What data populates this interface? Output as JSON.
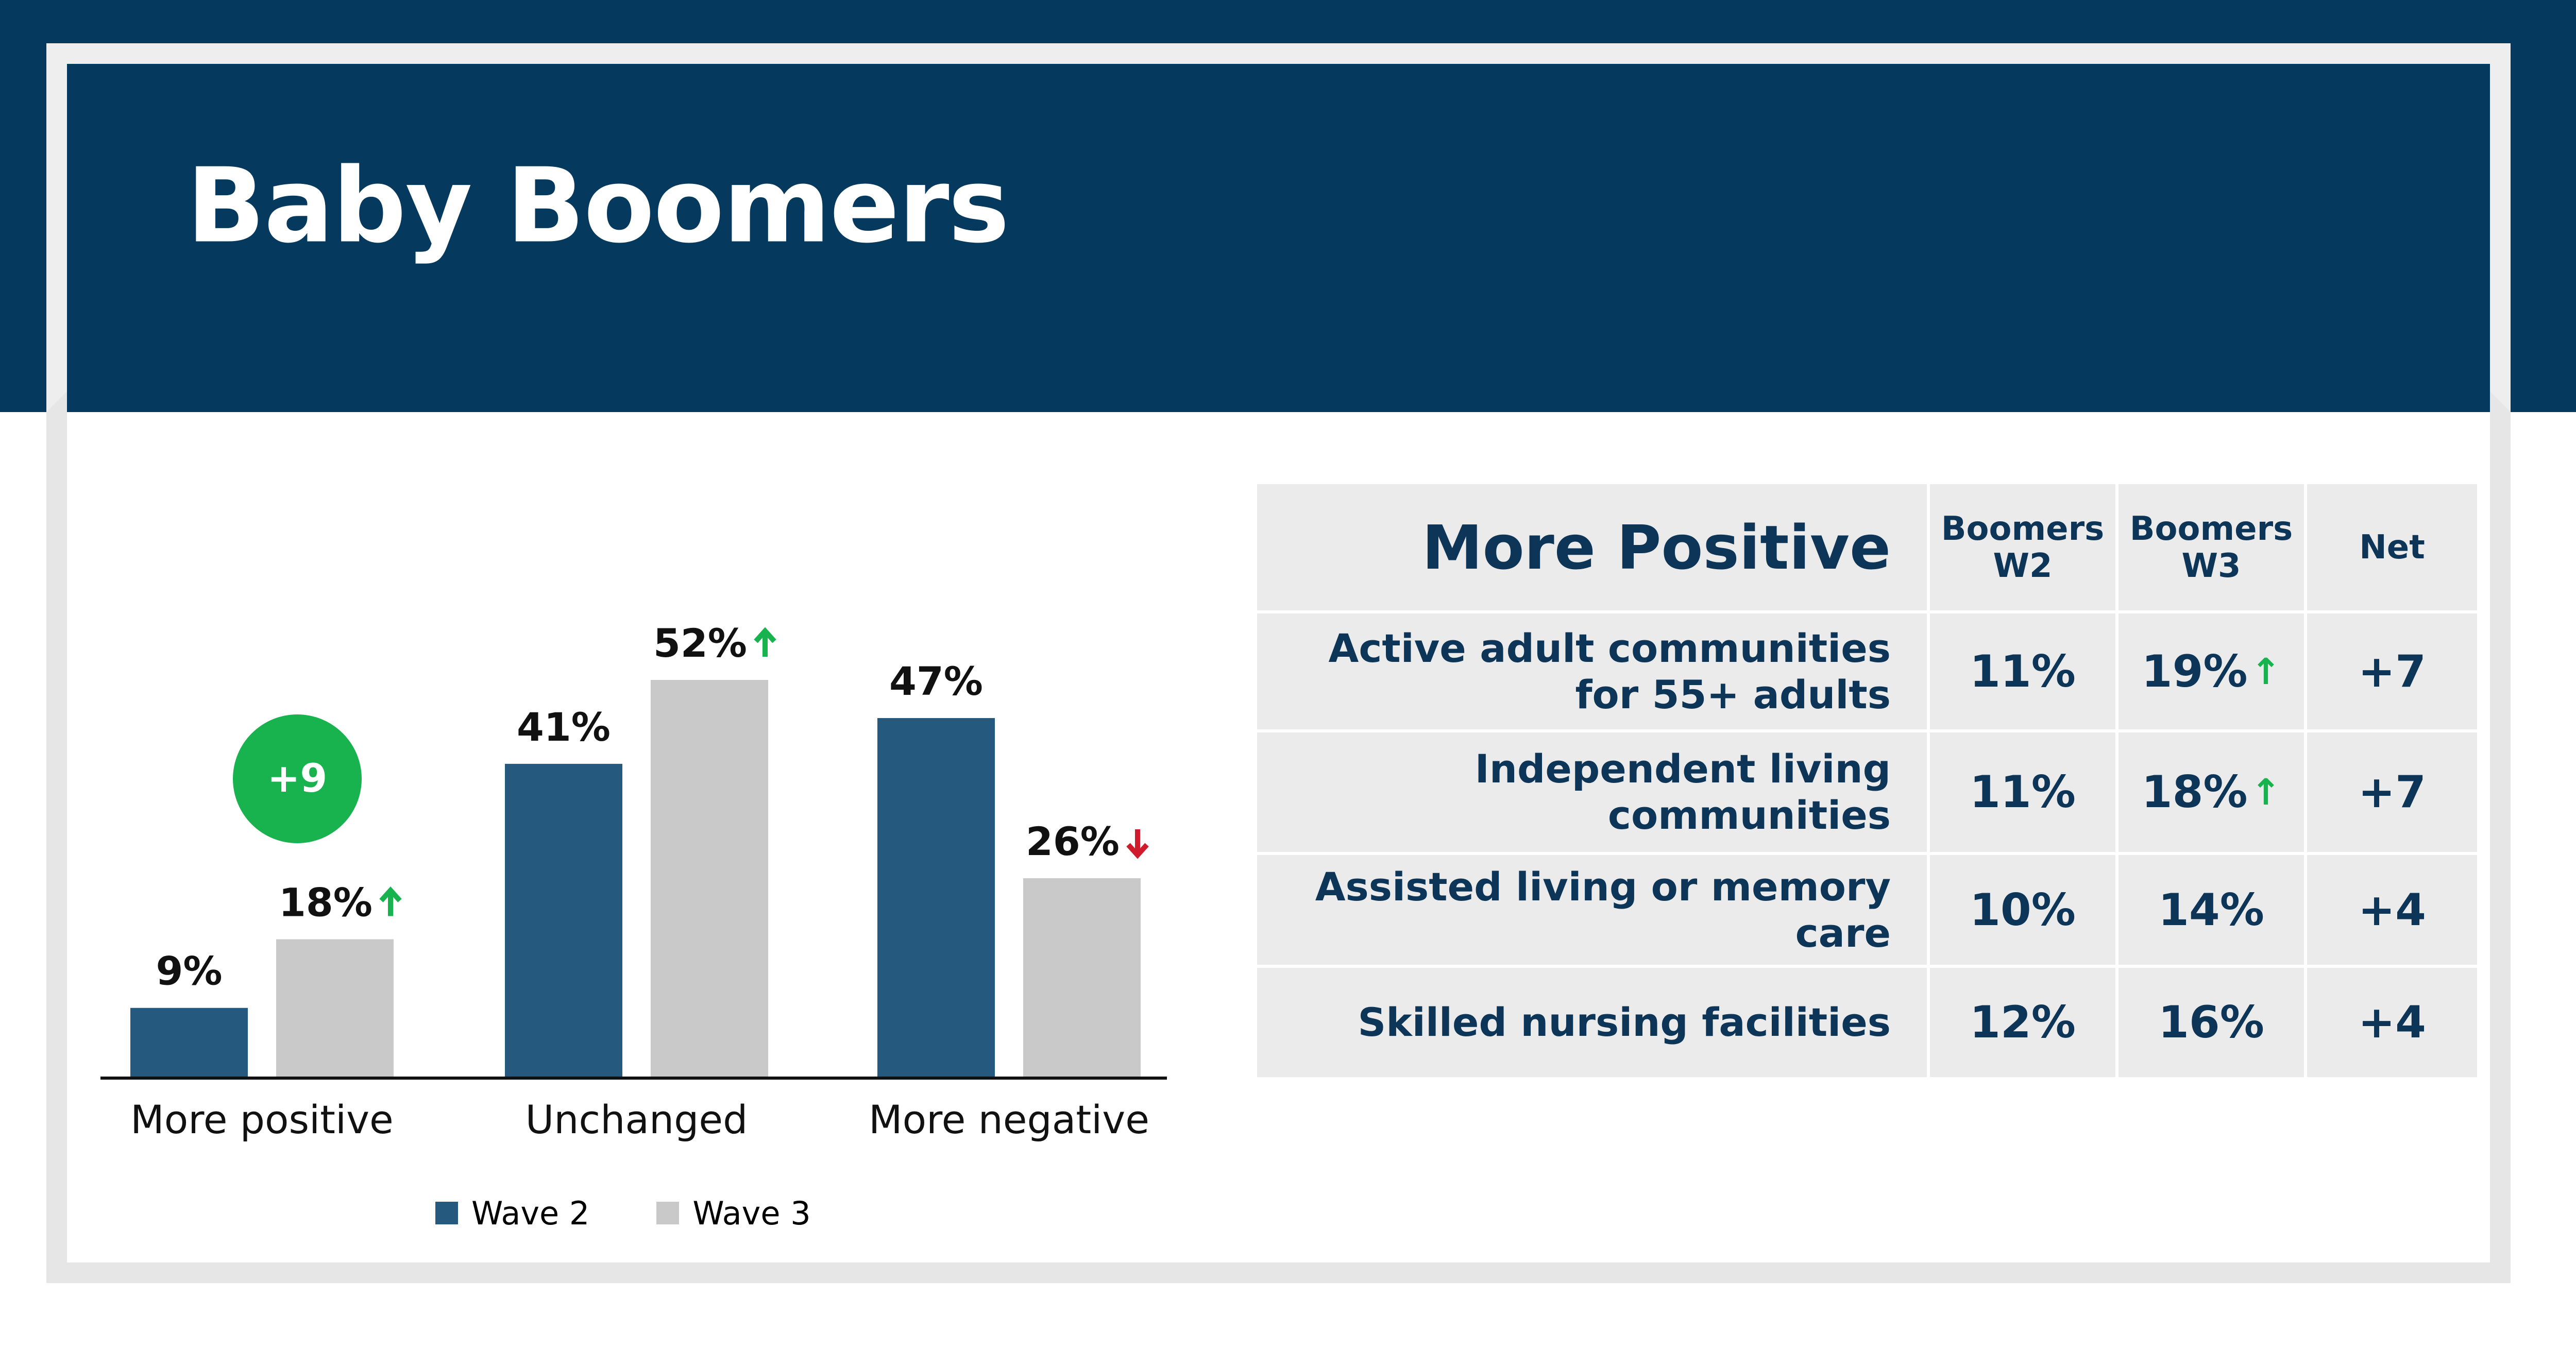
{
  "header": {
    "title": "Baby Boomers"
  },
  "colors": {
    "wave2": "#255a7e",
    "wave3": "#c9c9c9",
    "up": "#18b34f",
    "down": "#cf1b2b",
    "badge": "#18b34f"
  },
  "chart_data": {
    "type": "bar",
    "categories": [
      "More positive",
      "Unchanged",
      "More negative"
    ],
    "series": [
      {
        "name": "Wave 2",
        "values": [
          9,
          41,
          47
        ],
        "labels": [
          "9%",
          "41%",
          "47%"
        ],
        "arrows": [
          "",
          "",
          ""
        ]
      },
      {
        "name": "Wave 3",
        "values": [
          18,
          52,
          26
        ],
        "labels": [
          "18%",
          "52%",
          "26%"
        ],
        "arrows": [
          "up",
          "up",
          "down"
        ]
      }
    ],
    "annotations": [
      {
        "text": "+9",
        "category": "More positive"
      }
    ],
    "ylim": [
      0,
      52
    ],
    "legend": "bottom"
  },
  "table": {
    "title": "More Positive",
    "columns": [
      "Boomers W2",
      "Boomers W3",
      "Net"
    ],
    "rows": [
      {
        "label": "Active adult communities for 55+ adults",
        "w2": "11%",
        "w3": "19%",
        "w3_up": true,
        "net": "+7"
      },
      {
        "label": "Independent living communities",
        "w2": "11%",
        "w3": "18%",
        "w3_up": true,
        "net": "+7"
      },
      {
        "label": "Assisted living or memory care",
        "w2": "10%",
        "w3": "14%",
        "w3_up": false,
        "net": "+4"
      },
      {
        "label": "Skilled nursing facilities",
        "w2": "12%",
        "w3": "16%",
        "w3_up": false,
        "net": "+4"
      }
    ]
  }
}
